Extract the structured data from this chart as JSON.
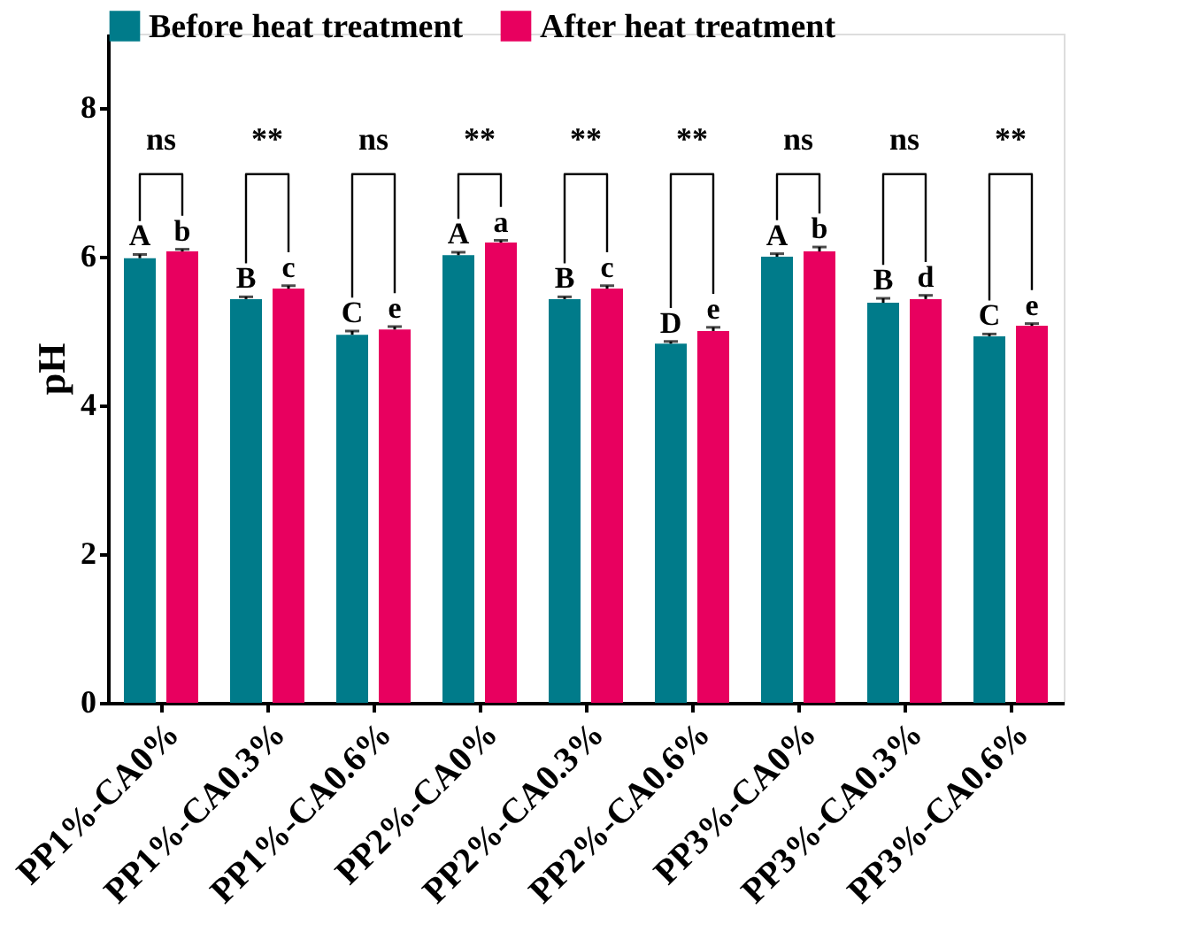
{
  "chart_data": {
    "type": "bar",
    "ylabel": "pH",
    "categories": [
      "PP1%-CA0%",
      "PP1%-CA0.3%",
      "PP1%-CA0.6%",
      "PP2%-CA0%",
      "PP2%-CA0.3%",
      "PP2%-CA0.6%",
      "PP3%-CA0%",
      "PP3%-CA0.3%",
      "PP3%-CA0.6%"
    ],
    "series": [
      {
        "name": "Before heat treatment",
        "color": "#007b8a",
        "values": [
          5.98,
          5.43,
          4.95,
          6.02,
          5.43,
          4.83,
          6.0,
          5.38,
          4.93
        ],
        "errors": [
          0.05,
          0.03,
          0.05,
          0.04,
          0.03,
          0.03,
          0.04,
          0.06,
          0.03
        ],
        "value_labels": [
          "A",
          "B",
          "C",
          "A",
          "B",
          "D",
          "A",
          "B",
          "C"
        ]
      },
      {
        "name": "After heat treatment",
        "color": "#e8005f",
        "values": [
          6.07,
          5.57,
          5.02,
          6.19,
          5.57,
          5.0,
          6.07,
          5.43,
          5.07
        ],
        "errors": [
          0.03,
          0.04,
          0.04,
          0.03,
          0.04,
          0.05,
          0.06,
          0.05,
          0.03
        ],
        "value_labels": [
          "b",
          "c",
          "e",
          "a",
          "c",
          "e",
          "b",
          "d",
          "e"
        ]
      }
    ],
    "annotations": [
      "ns",
      "**",
      "ns",
      "**",
      "**",
      "**",
      "ns",
      "ns",
      "**"
    ],
    "ylim": [
      0,
      9
    ],
    "yticks": [
      0,
      2,
      4,
      6,
      8
    ],
    "grid": false,
    "legend": "top"
  }
}
